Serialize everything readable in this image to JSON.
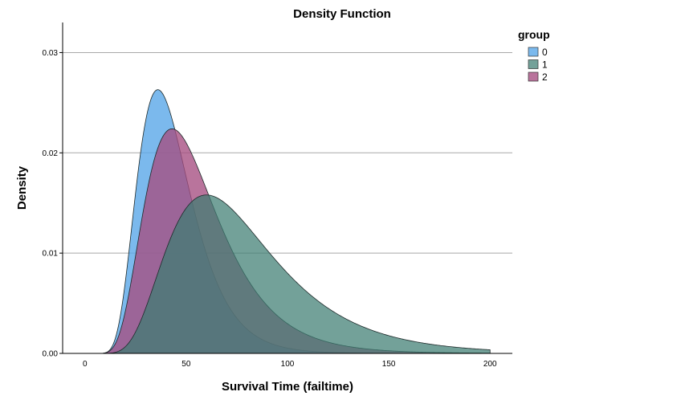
{
  "chart_data": {
    "type": "area",
    "title": "Density Function",
    "xlabel": "Survival Time (failtime)",
    "ylabel": "Density",
    "xlim": [
      -11,
      211
    ],
    "ylim": [
      0,
      0.033
    ],
    "xticks": [
      0,
      50,
      100,
      150,
      200
    ],
    "xtick_labels": [
      "0",
      "50",
      "100",
      "150",
      "200"
    ],
    "yticks": [
      0.0,
      0.01,
      0.02,
      0.03
    ],
    "ytick_labels": [
      "0.00",
      "0.01",
      "0.02",
      "0.03"
    ],
    "grid": "horizontal",
    "x_range": [
      0,
      200
    ],
    "legend": {
      "title": "group",
      "position": "top-right"
    },
    "series": [
      {
        "name": "0",
        "color": "#5aa8e8",
        "opacity": 0.8,
        "distribution": "lognormal",
        "peak_x": 36,
        "peak_density": 0.0263,
        "mean_x": 44
      },
      {
        "name": "1",
        "color": "#3d7d72",
        "opacity": 0.72,
        "distribution": "lognormal",
        "peak_x": 60,
        "peak_density": 0.0158,
        "mean_x": 80
      },
      {
        "name": "2",
        "color": "#a54d80",
        "opacity": 0.78,
        "distribution": "lognormal",
        "peak_x": 43,
        "peak_density": 0.0224,
        "mean_x": 56
      }
    ]
  }
}
